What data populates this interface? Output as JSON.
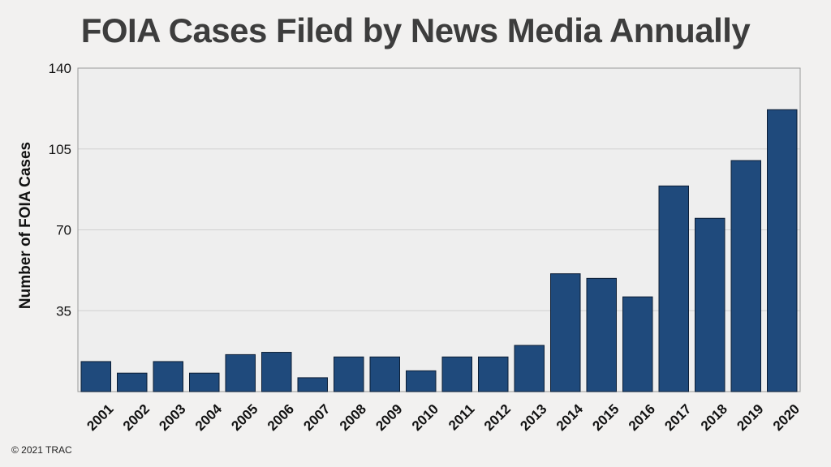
{
  "title": "FOIA Cases Filed by News Media Annually",
  "ylabel": "Number of FOIA Cases",
  "copyright": "© 2021 TRAC",
  "colors": {
    "bar": "#1f4a7c",
    "bar_edge": "#0c1e36",
    "plot_bg": "#eeeeee",
    "grid": "#d0d0d0"
  },
  "chart_data": {
    "type": "bar",
    "title": "FOIA Cases Filed by News Media Annually",
    "xlabel": "",
    "ylabel": "Number of FOIA Cases",
    "categories": [
      "2001",
      "2002",
      "2003",
      "2004",
      "2005",
      "2006",
      "2007",
      "2008",
      "2009",
      "2010",
      "2011",
      "2012",
      "2013",
      "2014",
      "2015",
      "2016",
      "2017",
      "2018",
      "2019",
      "2020"
    ],
    "values": [
      13,
      8,
      13,
      8,
      16,
      17,
      6,
      15,
      15,
      9,
      15,
      15,
      20,
      51,
      49,
      41,
      89,
      75,
      100,
      122
    ],
    "ylim": [
      0,
      140
    ],
    "yticks": [
      "35",
      "70",
      "105",
      "140"
    ],
    "grid": true,
    "legend": "none"
  }
}
